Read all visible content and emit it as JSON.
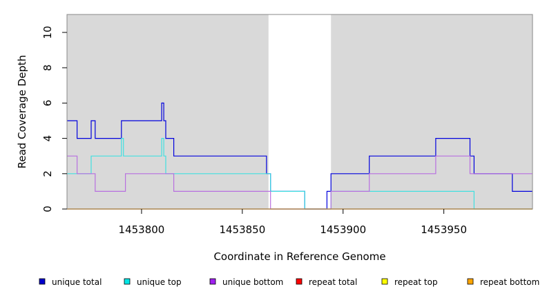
{
  "chart_data": {
    "type": "line",
    "title": "",
    "xlabel": "Coordinate in Reference Genome",
    "ylabel": "Read Coverage Depth",
    "xlim": [
      1453763,
      1453994
    ],
    "ylim": [
      0,
      11
    ],
    "xticks": [
      1453800,
      1453850,
      1453900,
      1453950
    ],
    "yticks": [
      0,
      2,
      4,
      6,
      8,
      10
    ],
    "shaded_regions": [
      {
        "x0": 1453763,
        "x1": 1453863,
        "color": "#d9d9d9"
      },
      {
        "x0": 1453894,
        "x1": 1453994,
        "color": "#d9d9d9"
      }
    ],
    "series": [
      {
        "name": "unique total",
        "color": "#0000dd",
        "steps": [
          [
            1453763,
            5
          ],
          [
            1453768,
            4
          ],
          [
            1453775,
            5
          ],
          [
            1453777,
            4
          ],
          [
            1453790,
            5
          ],
          [
            1453810,
            6
          ],
          [
            1453811,
            5
          ],
          [
            1453812,
            4
          ],
          [
            1453816,
            3
          ],
          [
            1453862,
            2
          ],
          [
            1453864,
            1
          ],
          [
            1453881,
            0
          ],
          [
            1453892,
            1
          ],
          [
            1453894,
            2
          ],
          [
            1453913,
            3
          ],
          [
            1453946,
            4
          ],
          [
            1453963,
            3
          ],
          [
            1453965,
            2
          ],
          [
            1453984,
            1
          ],
          [
            1453994,
            1
          ]
        ]
      },
      {
        "name": "unique top",
        "color": "#40e0e0",
        "steps": [
          [
            1453763,
            2
          ],
          [
            1453775,
            3
          ],
          [
            1453790,
            4
          ],
          [
            1453791,
            3
          ],
          [
            1453810,
            4
          ],
          [
            1453811,
            3
          ],
          [
            1453812,
            2
          ],
          [
            1453864,
            1
          ],
          [
            1453881,
            0
          ],
          [
            1453894,
            1
          ],
          [
            1453965,
            0
          ],
          [
            1453994,
            0
          ]
        ]
      },
      {
        "name": "unique bottom",
        "color": "#b86fe0",
        "steps": [
          [
            1453763,
            3
          ],
          [
            1453768,
            2
          ],
          [
            1453777,
            1
          ],
          [
            1453792,
            2
          ],
          [
            1453816,
            1
          ],
          [
            1453864,
            0
          ],
          [
            1453894,
            1
          ],
          [
            1453913,
            2
          ],
          [
            1453946,
            3
          ],
          [
            1453963,
            2
          ],
          [
            1453994,
            2
          ]
        ]
      },
      {
        "name": "repeat total",
        "color": "#e00000",
        "steps": [
          [
            1453763,
            0
          ],
          [
            1453994,
            0
          ]
        ]
      },
      {
        "name": "repeat top",
        "color": "#e8e800",
        "steps": [
          [
            1453763,
            0
          ],
          [
            1453994,
            0
          ]
        ]
      },
      {
        "name": "repeat bottom",
        "color": "#ff9900",
        "steps": [
          [
            1453763,
            0
          ],
          [
            1453994,
            0
          ]
        ]
      }
    ],
    "legend": {
      "placement": "bottom",
      "entries": [
        {
          "label": "unique total",
          "color": "#0000cc"
        },
        {
          "label": "unique top",
          "color": "#00e6e6"
        },
        {
          "label": "unique bottom",
          "color": "#a020f0"
        },
        {
          "label": "repeat total",
          "color": "#ff0000"
        },
        {
          "label": "repeat top",
          "color": "#ffff00"
        },
        {
          "label": "repeat bottom",
          "color": "#ffa500"
        }
      ]
    }
  }
}
